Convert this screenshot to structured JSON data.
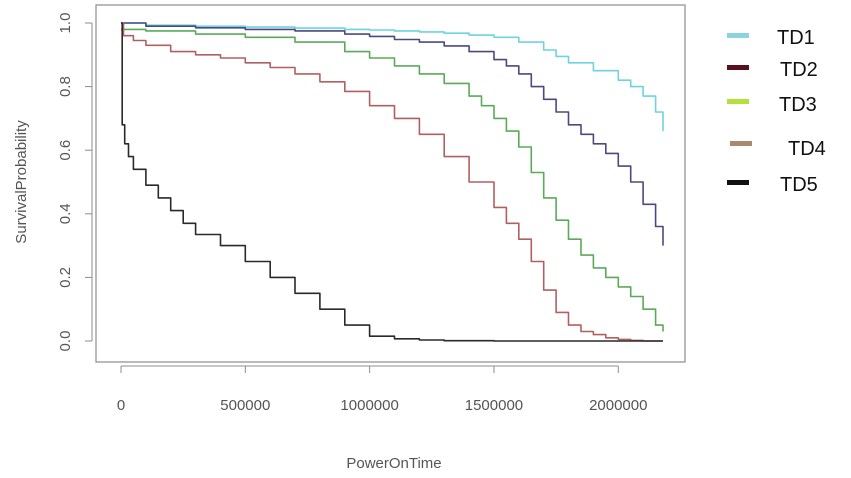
{
  "chart_data": {
    "type": "line",
    "title": "",
    "xlabel": "PowerOnTime",
    "ylabel": "SurvivalProbability",
    "xlim": [
      0,
      2200000
    ],
    "ylim": [
      0,
      1
    ],
    "xticks": [
      0,
      500000,
      1000000,
      1500000,
      2000000
    ],
    "xtick_labels": [
      "0",
      "500000",
      "1000000",
      "1500000",
      "2000000"
    ],
    "yticks": [
      0.0,
      0.2,
      0.4,
      0.6,
      0.8,
      1.0
    ],
    "ytick_labels": [
      "0.0",
      "0.2",
      "0.4",
      "0.6",
      "0.8",
      "1.0"
    ],
    "grid": false,
    "legend_position": "right",
    "series": [
      {
        "name": "TD1",
        "color": "#6fd3df",
        "x": [
          0,
          100000,
          300000,
          500000,
          700000,
          900000,
          1000000,
          1100000,
          1200000,
          1300000,
          1400000,
          1500000,
          1600000,
          1700000,
          1750000,
          1800000,
          1900000,
          2000000,
          2050000,
          2100000,
          2150000,
          2180000
        ],
        "y": [
          1.0,
          0.993,
          0.99,
          0.987,
          0.984,
          0.98,
          0.978,
          0.975,
          0.972,
          0.968,
          0.962,
          0.955,
          0.94,
          0.915,
          0.895,
          0.875,
          0.85,
          0.82,
          0.8,
          0.77,
          0.72,
          0.66
        ]
      },
      {
        "name": "TD2",
        "color": "#4a4a80",
        "x": [
          0,
          100000,
          300000,
          500000,
          700000,
          900000,
          1000000,
          1100000,
          1200000,
          1300000,
          1400000,
          1500000,
          1550000,
          1600000,
          1650000,
          1700000,
          1750000,
          1800000,
          1850000,
          1900000,
          1950000,
          2000000,
          2050000,
          2100000,
          2150000,
          2180000
        ],
        "y": [
          1.0,
          0.99,
          0.985,
          0.98,
          0.975,
          0.965,
          0.958,
          0.948,
          0.94,
          0.928,
          0.91,
          0.885,
          0.865,
          0.84,
          0.8,
          0.76,
          0.72,
          0.68,
          0.65,
          0.62,
          0.59,
          0.55,
          0.5,
          0.43,
          0.36,
          0.3
        ]
      },
      {
        "name": "TD3",
        "color": "#5aaa5a",
        "x": [
          0,
          100000,
          300000,
          500000,
          700000,
          900000,
          1000000,
          1100000,
          1200000,
          1300000,
          1400000,
          1450000,
          1500000,
          1550000,
          1600000,
          1650000,
          1700000,
          1750000,
          1800000,
          1850000,
          1900000,
          1950000,
          2000000,
          2050000,
          2100000,
          2150000,
          2180000
        ],
        "y": [
          0.98,
          0.975,
          0.965,
          0.955,
          0.94,
          0.91,
          0.89,
          0.865,
          0.84,
          0.81,
          0.77,
          0.74,
          0.7,
          0.66,
          0.61,
          0.53,
          0.45,
          0.38,
          0.32,
          0.27,
          0.23,
          0.2,
          0.17,
          0.14,
          0.1,
          0.05,
          0.03
        ]
      },
      {
        "name": "TD4",
        "color": "#b06060",
        "x": [
          0,
          10000,
          50000,
          100000,
          200000,
          300000,
          400000,
          500000,
          600000,
          700000,
          800000,
          900000,
          1000000,
          1100000,
          1200000,
          1300000,
          1400000,
          1500000,
          1550000,
          1600000,
          1650000,
          1700000,
          1750000,
          1800000,
          1850000,
          1900000,
          1950000,
          2000000,
          2050000,
          2100000,
          2180000
        ],
        "y": [
          1.0,
          0.96,
          0.945,
          0.93,
          0.91,
          0.9,
          0.89,
          0.875,
          0.86,
          0.84,
          0.815,
          0.785,
          0.74,
          0.7,
          0.65,
          0.58,
          0.5,
          0.42,
          0.37,
          0.32,
          0.25,
          0.16,
          0.09,
          0.05,
          0.03,
          0.02,
          0.01,
          0.005,
          0.002,
          0.0,
          0.0
        ]
      },
      {
        "name": "TD5",
        "color": "#2a2a2a",
        "x": [
          0,
          5000,
          15000,
          30000,
          50000,
          100000,
          150000,
          200000,
          250000,
          300000,
          400000,
          500000,
          600000,
          700000,
          800000,
          900000,
          1000000,
          1100000,
          1200000,
          1300000,
          1500000,
          2000000,
          2180000
        ],
        "y": [
          1.0,
          0.68,
          0.62,
          0.58,
          0.54,
          0.49,
          0.45,
          0.41,
          0.37,
          0.335,
          0.3,
          0.25,
          0.2,
          0.15,
          0.1,
          0.05,
          0.015,
          0.007,
          0.003,
          0.001,
          0.0,
          0.0,
          0.0
        ]
      }
    ],
    "legend_entries": [
      {
        "label": "TD1",
        "color": "#8ad3e0"
      },
      {
        "label": "TD2",
        "color": "#5a0f1e"
      },
      {
        "label": "TD3",
        "color": "#b5df3a"
      },
      {
        "label": "TD4",
        "color": "#a98a6f"
      },
      {
        "label": "TD5",
        "color": "#111111"
      }
    ]
  }
}
